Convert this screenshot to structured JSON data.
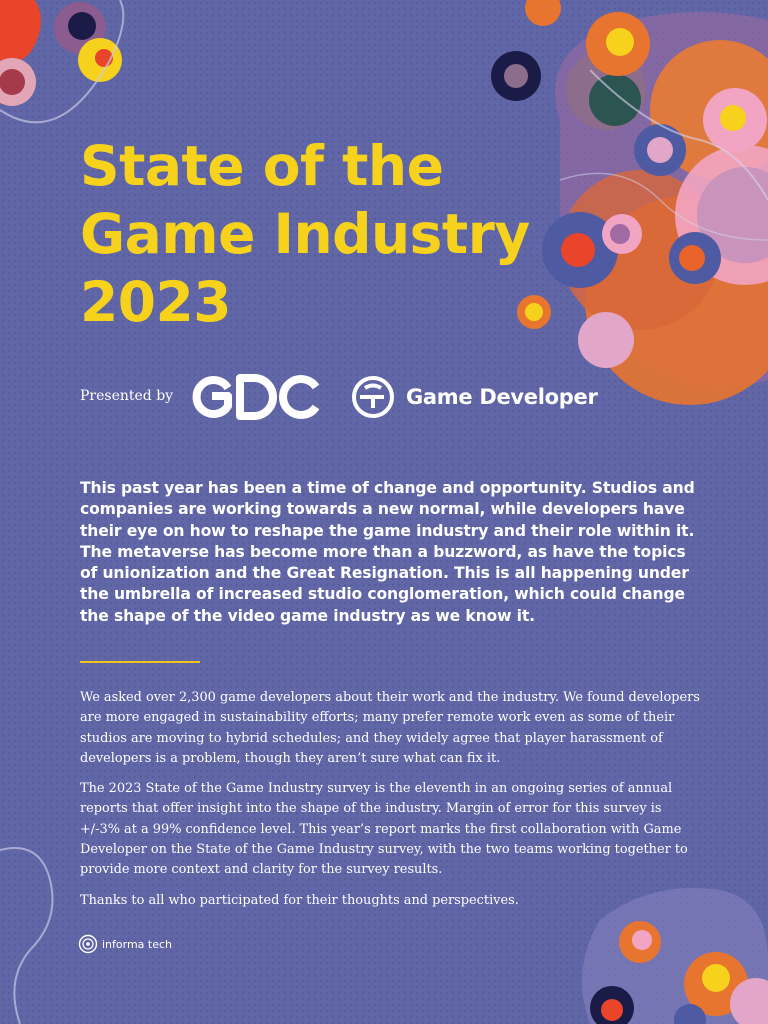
{
  "cover": {
    "title_lines": [
      "State of the",
      "Game Industry",
      "2023"
    ]
  },
  "presenters": {
    "label": "Presented by",
    "logo_gdc_text": "GDC",
    "logo_game_developer_text": "Game Developer"
  },
  "lead_paragraph": "This past year has been a time of change and opportunity. Studios and companies are working towards a new normal, while developers have their eye on how to reshape the game industry and their role within it. The metaverse has become more than a buzzword, as have the topics of unionization and the Great Resignation. This is all happening under the umbrella of increased studio conglomeration, which could change the shape of the video game industry as we know it.",
  "body_paragraphs": [
    "We asked over 2,300 game developers about their work and the industry. We found developers are more engaged in sustainability efforts; many prefer remote work even as some of their studios are moving to hybrid schedules; and they widely agree that player harassment of developers is a problem, though they aren’t sure what can fix it.",
    "The 2023 State of the Game Industry survey is the eleventh in an ongoing series of annual reports that offer insight into the shape of the industry. Margin of error for this survey is +/-3% at a 99% confidence level. This year’s report marks the first collaboration with Game Developer on the State of the Game Industry survey, with the two teams working together to provide more context and clarity for the survey results.",
    "Thanks to all who participated for their thoughts and perspectives."
  ],
  "footer": {
    "brand": "informa tech"
  },
  "colors": {
    "background": "#6066a6",
    "title": "#f7d21c",
    "accent_rule": "#f0c31e",
    "text": "#ffffff"
  }
}
